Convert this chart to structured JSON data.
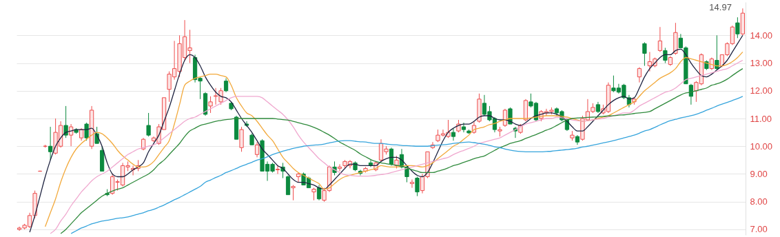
{
  "chart_data": {
    "type": "candlestick",
    "categories": [
      null,
      null,
      null,
      null,
      null,
      null,
      null,
      null,
      null,
      null,
      null,
      null,
      null,
      null,
      null,
      null,
      null,
      null,
      null,
      null,
      null,
      null,
      null,
      null,
      null,
      null,
      null,
      null,
      null,
      null,
      null,
      null,
      null,
      null,
      null,
      null,
      null,
      null,
      null,
      null,
      null,
      null,
      null,
      null,
      null,
      null,
      null,
      null,
      null,
      null,
      null,
      null,
      null,
      null,
      null,
      null,
      null,
      null,
      null,
      null,
      null,
      null,
      null,
      null,
      null,
      null,
      null,
      null,
      null,
      null,
      null,
      null,
      null,
      null,
      null,
      null,
      null,
      null,
      null,
      null,
      null,
      null,
      null,
      null,
      null,
      null,
      null,
      null,
      null,
      null,
      null,
      null,
      null,
      null,
      null,
      null,
      null,
      null,
      null,
      null,
      null,
      null,
      null,
      null,
      null,
      null,
      null,
      null,
      null,
      null,
      null,
      null,
      null,
      null,
      null,
      null,
      null,
      null,
      null,
      null,
      null,
      null,
      null,
      null,
      null,
      null,
      null,
      null,
      null,
      null,
      null,
      null,
      null,
      null,
      null,
      null,
      null,
      null,
      null,
      null,
      null
    ],
    "ohlc": [
      [
        7.0,
        7.1,
        6.95,
        7.05
      ],
      [
        7.05,
        7.2,
        7.0,
        7.15
      ],
      [
        7.1,
        7.6,
        7.05,
        7.5
      ],
      [
        7.5,
        8.4,
        7.4,
        8.3
      ],
      [
        9.1,
        9.12,
        9.08,
        9.1
      ],
      [
        10.0,
        10.05,
        9.95,
        10.0
      ],
      [
        10.0,
        10.7,
        9.5,
        9.8
      ],
      [
        9.75,
        11.0,
        9.7,
        10.5
      ],
      [
        10.0,
        10.9,
        9.95,
        10.75
      ],
      [
        10.75,
        11.45,
        10.3,
        10.4
      ],
      [
        10.4,
        10.8,
        10.0,
        10.7
      ],
      [
        10.6,
        10.65,
        10.45,
        10.5
      ],
      [
        10.3,
        10.65,
        10.2,
        10.6
      ],
      [
        10.8,
        10.85,
        10.2,
        10.3
      ],
      [
        10.0,
        11.45,
        9.9,
        11.3
      ],
      [
        10.45,
        10.7,
        10.1,
        10.1
      ],
      [
        9.85,
        10.0,
        9.1,
        9.1
      ],
      [
        8.3,
        8.45,
        8.2,
        8.25
      ],
      [
        8.3,
        9.0,
        8.25,
        8.9
      ],
      [
        8.7,
        8.8,
        8.4,
        8.72
      ],
      [
        8.6,
        9.4,
        8.55,
        9.3
      ],
      [
        9.25,
        9.45,
        9.1,
        9.3
      ],
      [
        9.15,
        9.3,
        8.95,
        9.2
      ],
      [
        9.2,
        9.5,
        9.1,
        9.3
      ],
      [
        9.9,
        10.3,
        9.85,
        10.25
      ],
      [
        10.75,
        11.2,
        10.35,
        10.4
      ],
      [
        10.2,
        10.35,
        10.15,
        10.3
      ],
      [
        10.1,
        10.8,
        10.05,
        10.7
      ],
      [
        10.6,
        11.75,
        10.6,
        11.75
      ],
      [
        12.05,
        12.7,
        11.6,
        12.6
      ],
      [
        12.5,
        13.8,
        12.4,
        12.8
      ],
      [
        12.7,
        14.0,
        12.5,
        13.7
      ],
      [
        13.2,
        14.55,
        13.1,
        13.95
      ],
      [
        13.45,
        14.2,
        13.0,
        13.55
      ],
      [
        13.2,
        13.3,
        12.3,
        12.4
      ],
      [
        12.45,
        12.5,
        11.7,
        12.35
      ],
      [
        11.9,
        11.95,
        11.1,
        11.15
      ],
      [
        11.45,
        11.8,
        11.2,
        11.6
      ],
      [
        11.8,
        12.1,
        11.5,
        11.82
      ],
      [
        11.6,
        12.1,
        11.5,
        12.0
      ],
      [
        12.35,
        12.45,
        11.95,
        12.0
      ],
      [
        11.55,
        11.6,
        11.3,
        11.35
      ],
      [
        11.05,
        11.1,
        10.25,
        10.25
      ],
      [
        9.95,
        10.7,
        9.8,
        10.6
      ],
      [
        10.8,
        10.9,
        10.7,
        10.75
      ],
      [
        10.4,
        10.45,
        10.05,
        10.05
      ],
      [
        9.7,
        10.15,
        9.6,
        10.05
      ],
      [
        10.2,
        10.25,
        9.1,
        9.1
      ],
      [
        9.35,
        9.45,
        8.75,
        9.1
      ],
      [
        9.35,
        9.4,
        9.05,
        9.1
      ],
      [
        9.15,
        9.3,
        9.0,
        9.17
      ],
      [
        9.25,
        9.4,
        8.85,
        9.1
      ],
      [
        8.9,
        8.95,
        8.25,
        8.25
      ],
      [
        8.5,
        8.6,
        8.05,
        8.55
      ],
      [
        8.9,
        9.05,
        8.7,
        9.0
      ],
      [
        9.0,
        9.05,
        8.6,
        8.6
      ],
      [
        8.85,
        8.9,
        8.5,
        8.5
      ],
      [
        8.35,
        8.5,
        8.05,
        8.45
      ],
      [
        8.5,
        8.6,
        8.05,
        8.1
      ],
      [
        8.05,
        8.5,
        8.0,
        8.4
      ],
      [
        8.4,
        9.3,
        8.35,
        9.25
      ],
      [
        9.25,
        9.45,
        8.95,
        9.05
      ],
      [
        9.2,
        9.35,
        9.1,
        9.25
      ],
      [
        9.3,
        9.5,
        9.2,
        9.45
      ],
      [
        9.3,
        9.5,
        9.2,
        9.45
      ],
      [
        9.4,
        9.45,
        9.1,
        9.15
      ],
      [
        9.1,
        9.15,
        8.95,
        9.02
      ],
      [
        9.1,
        9.25,
        9.05,
        9.2
      ],
      [
        9.4,
        9.5,
        9.25,
        9.3
      ],
      [
        9.15,
        9.45,
        9.1,
        9.4
      ],
      [
        9.5,
        10.25,
        9.45,
        10.1
      ],
      [
        9.8,
        10.0,
        9.7,
        9.9
      ],
      [
        9.9,
        9.95,
        9.3,
        9.35
      ],
      [
        9.3,
        9.65,
        9.2,
        9.5
      ],
      [
        9.7,
        9.9,
        9.2,
        9.25
      ],
      [
        9.25,
        9.3,
        8.7,
        8.9
      ],
      [
        8.65,
        8.8,
        8.5,
        8.7
      ],
      [
        8.85,
        8.9,
        8.2,
        8.35
      ],
      [
        8.4,
        9.0,
        8.3,
        8.9
      ],
      [
        8.9,
        9.8,
        8.85,
        9.8
      ],
      [
        9.95,
        10.15,
        9.9,
        10.05
      ],
      [
        10.2,
        10.6,
        10.15,
        10.4
      ],
      [
        10.4,
        10.6,
        10.35,
        10.45
      ],
      [
        10.35,
        10.95,
        10.3,
        10.5
      ],
      [
        10.5,
        10.65,
        10.2,
        10.35
      ],
      [
        10.55,
        10.95,
        10.5,
        10.8
      ],
      [
        10.7,
        10.85,
        10.5,
        10.6
      ],
      [
        10.55,
        10.6,
        10.45,
        10.48
      ],
      [
        10.5,
        10.9,
        10.45,
        10.75
      ],
      [
        10.9,
        11.9,
        10.85,
        11.7
      ],
      [
        11.55,
        11.85,
        11.1,
        11.15
      ],
      [
        11.25,
        11.45,
        10.9,
        10.95
      ],
      [
        11.0,
        11.05,
        10.5,
        10.6
      ],
      [
        10.55,
        10.7,
        10.35,
        10.6
      ],
      [
        10.75,
        11.35,
        10.7,
        11.3
      ],
      [
        11.35,
        11.4,
        10.8,
        10.8
      ],
      [
        10.65,
        10.7,
        10.3,
        10.55
      ],
      [
        10.5,
        10.8,
        10.45,
        10.75
      ],
      [
        10.95,
        11.7,
        10.9,
        11.65
      ],
      [
        11.6,
        11.9,
        11.4,
        11.45
      ],
      [
        11.55,
        11.6,
        10.9,
        10.95
      ],
      [
        11.0,
        11.3,
        10.9,
        11.25
      ],
      [
        11.2,
        11.35,
        11.1,
        11.25
      ],
      [
        11.25,
        11.4,
        11.15,
        11.3
      ],
      [
        11.35,
        11.4,
        11.1,
        11.2
      ],
      [
        11.25,
        11.3,
        10.9,
        10.95
      ],
      [
        10.95,
        11.0,
        10.55,
        10.6
      ],
      [
        10.3,
        10.55,
        10.2,
        10.4
      ],
      [
        10.35,
        10.4,
        10.05,
        10.15
      ],
      [
        10.25,
        11.1,
        10.2,
        11.0
      ],
      [
        10.95,
        11.7,
        10.9,
        11.25
      ],
      [
        11.25,
        11.55,
        11.2,
        11.4
      ],
      [
        11.5,
        11.6,
        11.2,
        11.25
      ],
      [
        11.2,
        11.5,
        11.15,
        11.35
      ],
      [
        11.25,
        12.3,
        11.2,
        12.2
      ],
      [
        12.1,
        12.55,
        11.95,
        12.0
      ],
      [
        12.1,
        12.25,
        11.9,
        11.95
      ],
      [
        12.2,
        12.25,
        11.7,
        11.75
      ],
      [
        11.75,
        11.85,
        11.4,
        11.5
      ],
      [
        11.6,
        11.75,
        11.5,
        11.7
      ],
      [
        12.5,
        12.85,
        12.3,
        12.8
      ],
      [
        13.7,
        13.75,
        12.9,
        13.35
      ],
      [
        12.9,
        13.4,
        12.7,
        13.05
      ],
      [
        12.9,
        13.2,
        12.85,
        13.15
      ],
      [
        13.45,
        14.3,
        13.4,
        13.8
      ],
      [
        13.45,
        13.55,
        13.0,
        13.1
      ],
      [
        12.95,
        13.25,
        12.9,
        13.2
      ],
      [
        13.35,
        14.45,
        13.3,
        14.1
      ],
      [
        13.9,
        14.05,
        13.55,
        13.55
      ],
      [
        13.55,
        13.6,
        12.25,
        12.25
      ],
      [
        12.2,
        12.25,
        11.5,
        11.8
      ],
      [
        12.0,
        12.35,
        11.6,
        12.3
      ],
      [
        12.25,
        13.35,
        12.2,
        13.3
      ],
      [
        13.05,
        13.1,
        12.75,
        12.8
      ],
      [
        12.8,
        13.2,
        12.75,
        13.15
      ],
      [
        13.1,
        14.0,
        12.75,
        12.8
      ],
      [
        12.9,
        13.3,
        12.85,
        13.3
      ],
      [
        13.3,
        13.75,
        13.25,
        13.7
      ],
      [
        13.7,
        14.35,
        13.65,
        14.3
      ],
      [
        14.45,
        14.65,
        13.9,
        14.05
      ],
      [
        14.05,
        14.97,
        14.0,
        14.8
      ]
    ],
    "series": [
      {
        "type": "line",
        "color": "#1e2340",
        "values": [
          null,
          null,
          6.9,
          7.5,
          8.2,
          8.9,
          9.5,
          10.0,
          10.3,
          10.5,
          10.55,
          10.6,
          10.6,
          10.6,
          10.65,
          10.4,
          10.0,
          9.4,
          9.0,
          8.9,
          8.9,
          9.0,
          9.15,
          9.25,
          9.4,
          9.8,
          10.1,
          10.4,
          10.9,
          11.4,
          12.0,
          12.6,
          13.1,
          13.3,
          13.2,
          12.9,
          12.5,
          12.2,
          11.95,
          11.8,
          11.75,
          11.6,
          11.3,
          11.0,
          10.75,
          10.5,
          10.2,
          9.9,
          9.7,
          9.5,
          9.3,
          9.2,
          9.0,
          8.8,
          8.7,
          8.7,
          8.65,
          8.6,
          8.5,
          8.45,
          8.6,
          8.8,
          9.0,
          9.2,
          9.35,
          9.35,
          9.3,
          9.3,
          9.3,
          9.3,
          9.45,
          9.55,
          9.6,
          9.6,
          9.5,
          9.3,
          9.1,
          8.95,
          8.9,
          9.05,
          9.4,
          9.8,
          10.2,
          10.5,
          10.65,
          10.75,
          10.8,
          10.8,
          10.9,
          11.05,
          11.1,
          11.1,
          11.0,
          10.95,
          10.95,
          10.9,
          10.8,
          10.75,
          10.85,
          11.0,
          11.1,
          11.15,
          11.2,
          11.2,
          11.15,
          11.05,
          10.9,
          10.7,
          10.55,
          10.55,
          10.7,
          10.9,
          11.1,
          11.3,
          11.5,
          11.65,
          11.75,
          11.8,
          11.7,
          11.75,
          12.1,
          12.5,
          12.8,
          13.0,
          13.2,
          13.3,
          13.3,
          13.45,
          13.5,
          13.3,
          13.0,
          12.75,
          12.55,
          12.5,
          12.6,
          12.75,
          12.9,
          13.1,
          13.4,
          13.7,
          14.0
        ]
      },
      {
        "type": "line",
        "color": "#f2a93b",
        "values": [
          null,
          null,
          null,
          null,
          null,
          7.1,
          7.6,
          8.1,
          8.7,
          9.2,
          9.6,
          9.9,
          10.1,
          10.25,
          10.4,
          10.5,
          10.45,
          10.3,
          10.1,
          9.85,
          9.65,
          9.5,
          9.35,
          9.25,
          9.25,
          9.3,
          9.45,
          9.7,
          9.95,
          10.2,
          10.8,
          11.5,
          12.2,
          12.35,
          12.45,
          12.5,
          12.55,
          12.6,
          12.6,
          12.55,
          12.5,
          12.2,
          11.75,
          11.45,
          11.2,
          11.1,
          10.9,
          10.65,
          10.4,
          10.2,
          9.9,
          9.6,
          9.4,
          9.2,
          9.05,
          8.95,
          8.85,
          8.75,
          8.65,
          8.45,
          8.5,
          8.65,
          8.8,
          8.9,
          8.95,
          9.0,
          9.05,
          9.1,
          9.15,
          9.2,
          9.3,
          9.27,
          9.25,
          9.25,
          9.28,
          9.3,
          9.3,
          9.28,
          9.25,
          9.3,
          9.4,
          9.55,
          9.7,
          9.85,
          10.0,
          10.1,
          10.25,
          10.4,
          10.6,
          10.65,
          10.7,
          10.78,
          10.82,
          10.9,
          10.95,
          11.0,
          11.0,
          11.0,
          11.0,
          11.02,
          11.05,
          11.08,
          11.1,
          11.1,
          11.1,
          11.08,
          11.05,
          11.0,
          10.95,
          10.9,
          10.92,
          10.95,
          11.0,
          11.05,
          11.1,
          11.2,
          11.3,
          11.4,
          11.5,
          11.6,
          11.8,
          12.0,
          12.15,
          12.3,
          12.45,
          12.55,
          12.65,
          12.8,
          13.05,
          13.2,
          13.15,
          13.1,
          13.05,
          13.0,
          12.95,
          12.9,
          12.9,
          12.95,
          13.05,
          13.2,
          13.4
        ]
      },
      {
        "type": "line",
        "color": "#f0a8cf",
        "values": [
          null,
          null,
          null,
          null,
          null,
          null,
          6.85,
          7.0,
          7.3,
          7.55,
          7.85,
          8.1,
          8.35,
          8.55,
          8.75,
          8.9,
          9.0,
          9.1,
          9.25,
          9.4,
          9.55,
          9.7,
          9.8,
          9.9,
          9.95,
          10.0,
          10.05,
          10.15,
          10.3,
          10.45,
          10.6,
          10.75,
          10.9,
          11.0,
          11.05,
          11.15,
          11.25,
          11.35,
          11.45,
          11.55,
          11.65,
          11.75,
          11.8,
          11.8,
          11.8,
          11.8,
          11.8,
          11.75,
          11.6,
          11.45,
          11.3,
          11.15,
          10.95,
          10.7,
          10.4,
          10.15,
          9.95,
          9.75,
          9.55,
          9.4,
          9.25,
          9.15,
          9.05,
          8.97,
          8.95,
          8.93,
          8.92,
          8.92,
          8.93,
          8.95,
          8.98,
          9.0,
          9.05,
          9.1,
          9.15,
          9.2,
          9.25,
          9.3,
          9.35,
          9.4,
          9.45,
          9.5,
          9.55,
          9.6,
          9.7,
          9.78,
          9.85,
          9.92,
          10.0,
          10.1,
          10.15,
          10.2,
          10.25,
          10.3,
          10.4,
          10.5,
          10.6,
          10.7,
          10.8,
          10.85,
          10.9,
          10.95,
          11.0,
          11.0,
          11.05,
          11.03,
          11.0,
          10.95,
          10.92,
          10.9,
          10.92,
          10.95,
          10.98,
          11.0,
          11.05,
          11.1,
          11.15,
          11.2,
          11.2,
          11.3,
          11.45,
          11.55,
          11.65,
          11.75,
          11.85,
          11.95,
          12.0,
          12.1,
          12.25,
          12.4,
          12.45,
          12.5,
          12.55,
          12.6,
          12.65,
          12.7,
          12.75,
          12.8,
          12.9,
          13.0,
          13.1
        ]
      },
      {
        "type": "line",
        "color": "#2f8a3c",
        "values": [
          null,
          null,
          null,
          null,
          null,
          null,
          null,
          null,
          6.85,
          7.0,
          7.2,
          7.4,
          7.6,
          7.75,
          7.9,
          8.05,
          8.2,
          8.3,
          8.38,
          8.45,
          8.5,
          8.6,
          8.7,
          8.8,
          8.9,
          9.0,
          9.15,
          9.35,
          9.5,
          9.7,
          9.9,
          10.1,
          10.35,
          10.55,
          10.65,
          10.75,
          10.8,
          10.85,
          10.9,
          10.93,
          10.96,
          10.98,
          11.0,
          11.0,
          11.0,
          11.0,
          11.0,
          11.0,
          11.0,
          11.0,
          10.98,
          10.96,
          10.94,
          10.9,
          10.85,
          10.8,
          10.75,
          10.68,
          10.6,
          10.5,
          10.4,
          10.28,
          10.15,
          10.05,
          9.95,
          9.85,
          9.72,
          9.62,
          9.52,
          9.45,
          9.4,
          9.37,
          9.34,
          9.31,
          9.28,
          9.22,
          9.15,
          9.1,
          9.05,
          9.05,
          9.05,
          9.1,
          9.15,
          9.22,
          9.3,
          9.35,
          9.42,
          9.48,
          9.55,
          9.6,
          9.65,
          9.75,
          9.85,
          9.95,
          10.02,
          10.1,
          10.15,
          10.2,
          10.28,
          10.35,
          10.42,
          10.5,
          10.58,
          10.65,
          10.75,
          10.85,
          10.95,
          11.0,
          11.02,
          11.03,
          11.04,
          11.05,
          11.06,
          11.08,
          11.09,
          11.1,
          11.12,
          11.13,
          11.15,
          11.18,
          11.2,
          11.22,
          11.25,
          11.35,
          11.45,
          11.55,
          11.65,
          11.75,
          11.85,
          11.92,
          11.95,
          12.0,
          12.05,
          12.1,
          12.2,
          12.25,
          12.32,
          12.42,
          12.55,
          12.68,
          12.8
        ]
      },
      {
        "type": "line",
        "color": "#35a4dc",
        "values": [
          null,
          null,
          null,
          null,
          null,
          null,
          null,
          null,
          null,
          null,
          6.85,
          6.95,
          7.05,
          7.12,
          7.2,
          7.25,
          7.3,
          7.33,
          7.36,
          7.4,
          7.42,
          7.45,
          7.5,
          7.55,
          7.6,
          7.67,
          7.72,
          7.8,
          7.88,
          7.97,
          8.07,
          8.15,
          8.25,
          8.35,
          8.45,
          8.55,
          8.7,
          8.78,
          8.87,
          8.95,
          9.05,
          9.12,
          9.2,
          9.28,
          9.35,
          9.42,
          9.5,
          9.55,
          9.62,
          9.7,
          9.76,
          9.82,
          9.87,
          9.92,
          9.96,
          10.0,
          10.02,
          10.04,
          10.05,
          10.08,
          10.12,
          10.16,
          10.19,
          10.2,
          10.2,
          10.18,
          10.16,
          10.15,
          10.12,
          10.1,
          10.1,
          10.08,
          10.06,
          10.05,
          10.03,
          10.02,
          10.01,
          10.0,
          10.0,
          10.0,
          10.02,
          10.04,
          10.05,
          10.07,
          10.1,
          10.12,
          10.14,
          10.15,
          10.13,
          10.1,
          10.07,
          10.03,
          9.98,
          9.95,
          9.9,
          9.86,
          9.83,
          9.81,
          9.8,
          9.8,
          9.8,
          9.8,
          9.81,
          9.82,
          9.84,
          9.86,
          9.88,
          9.9,
          9.93,
          9.97,
          10.0,
          10.04,
          10.08,
          10.12,
          10.16,
          10.2,
          10.25,
          10.3,
          10.35,
          10.4,
          10.47,
          10.55,
          10.6,
          10.68,
          10.77,
          10.85,
          10.92,
          10.97,
          11.02,
          11.06,
          11.1,
          11.15,
          11.22,
          11.3,
          11.37,
          11.45,
          11.52,
          11.58,
          11.65,
          11.72,
          11.8
        ]
      }
    ],
    "ylim": [
      6.8,
      15.2
    ],
    "yticks": [
      {
        "value": 7,
        "label": "7.00"
      },
      {
        "value": 8,
        "label": "8.00"
      },
      {
        "value": 9,
        "label": "9.00"
      },
      {
        "value": 10,
        "label": "10.00"
      },
      {
        "value": 11,
        "label": "11.00"
      },
      {
        "value": 12,
        "label": "12.00"
      },
      {
        "value": 13,
        "label": "13.00"
      },
      {
        "value": 14,
        "label": "14.00"
      }
    ],
    "grid": "y",
    "tick_labels": "y",
    "annotations": [
      "14.97"
    ]
  }
}
